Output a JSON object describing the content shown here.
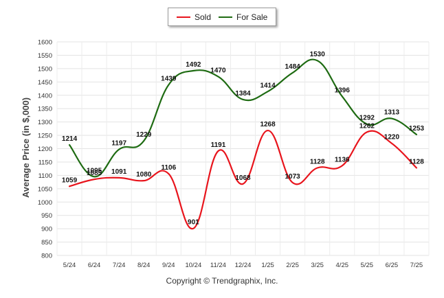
{
  "chart_data": {
    "type": "line",
    "title": "",
    "xlabel": "",
    "ylabel": "Average Price (in $,000)",
    "categories": [
      "5/24",
      "6/24",
      "7/24",
      "8/24",
      "9/24",
      "10/24",
      "11/24",
      "12/24",
      "1/25",
      "2/25",
      "3/25",
      "4/25",
      "5/25",
      "6/25",
      "7/25"
    ],
    "ylim": [
      800,
      1600
    ],
    "yticks": [
      800,
      850,
      900,
      950,
      1000,
      1050,
      1100,
      1150,
      1200,
      1250,
      1300,
      1350,
      1400,
      1450,
      1500,
      1550,
      1600
    ],
    "grid": true,
    "legend_position": "top-center",
    "series": [
      {
        "name": "Sold",
        "color": "#e8141c",
        "values": [
          1059,
          1085,
          1091,
          1080,
          1106,
          901,
          1191,
          1068,
          1268,
          1073,
          1128,
          1136,
          1262,
          1220,
          1128
        ]
      },
      {
        "name": "For Sale",
        "color": "#1e6b12",
        "values": [
          1214,
          1095,
          1197,
          1229,
          1439,
          1492,
          1470,
          1384,
          1414,
          1484,
          1530,
          1396,
          1292,
          1313,
          1253
        ]
      }
    ]
  },
  "footer": {
    "copyright": "Copyright © Trendgraphix, Inc."
  }
}
